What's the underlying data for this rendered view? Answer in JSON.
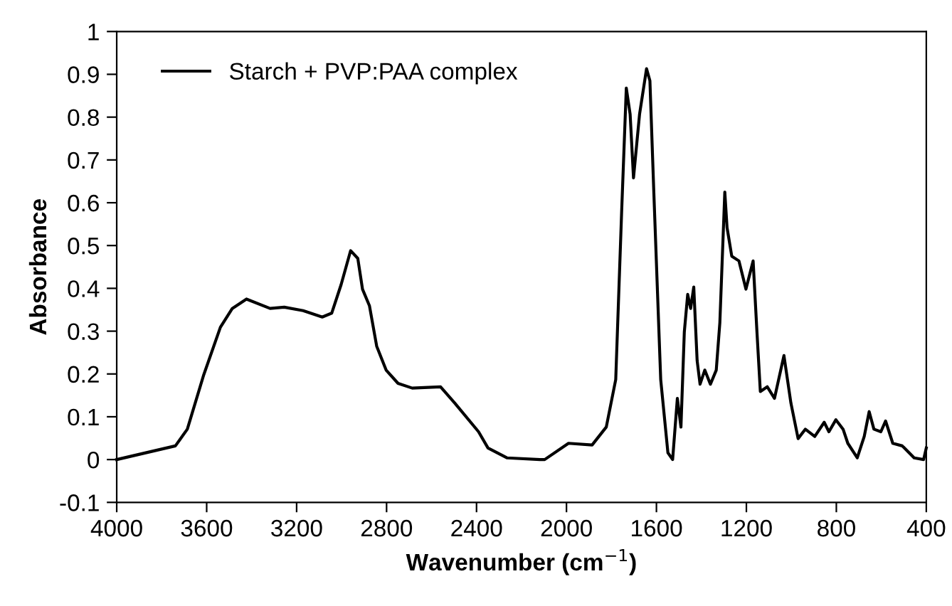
{
  "chart_data": {
    "type": "line",
    "xlabel": "Wavenumber (cm$^{−1}$)",
    "ylabel": "Absorbance",
    "xlim": [
      4000,
      400
    ],
    "xticks": [
      4000,
      3600,
      3200,
      2800,
      2400,
      2000,
      1600,
      1200,
      800,
      400
    ],
    "ylim": [
      -0.1,
      1
    ],
    "yticks": [
      -0.1,
      0,
      0.1,
      0.2,
      0.3,
      0.4,
      0.5,
      0.6,
      0.7,
      0.8,
      0.9,
      1
    ],
    "grid": false,
    "legend": "top left",
    "marker": "none",
    "line_style": "solid",
    "series": [
      {
        "name": "Starch + PVP:PAA complex",
        "color": "#000000",
        "x": [
          4000,
          3739,
          3686,
          3613,
          3539,
          3486,
          3423,
          3318,
          3255,
          3171,
          3086,
          3044,
          3002,
          2960,
          2928,
          2907,
          2876,
          2844,
          2802,
          2749,
          2686,
          2560,
          2497,
          2391,
          2349,
          2265,
          2118,
          2097,
          1991,
          1886,
          1823,
          1781,
          1755,
          1734,
          1717,
          1702,
          1675,
          1644,
          1629,
          1612,
          1581,
          1549,
          1528,
          1507,
          1491,
          1476,
          1461,
          1448,
          1434,
          1419,
          1406,
          1385,
          1360,
          1334,
          1318,
          1296,
          1286,
          1265,
          1233,
          1202,
          1170,
          1153,
          1138,
          1107,
          1075,
          1033,
          1002,
          970,
          938,
          896,
          854,
          833,
          802,
          770,
          749,
          707,
          676,
          654,
          633,
          602,
          581,
          549,
          507,
          454,
          412,
          400
        ],
        "values": [
          0,
          0.032,
          0.071,
          0.198,
          0.309,
          0.353,
          0.375,
          0.353,
          0.356,
          0.348,
          0.333,
          0.342,
          0.409,
          0.488,
          0.47,
          0.398,
          0.359,
          0.265,
          0.209,
          0.178,
          0.167,
          0.17,
          0.132,
          0.065,
          0.027,
          0.004,
          0,
          0,
          0.038,
          0.034,
          0.076,
          0.187,
          0.575,
          0.868,
          0.807,
          0.658,
          0.807,
          0.913,
          0.885,
          0.63,
          0.187,
          0.016,
          0,
          0.143,
          0.076,
          0.298,
          0.386,
          0.353,
          0.403,
          0.231,
          0.176,
          0.209,
          0.176,
          0.209,
          0.32,
          0.625,
          0.542,
          0.475,
          0.464,
          0.398,
          0.464,
          0.298,
          0.159,
          0.17,
          0.143,
          0.243,
          0.132,
          0.049,
          0.071,
          0.054,
          0.087,
          0.065,
          0.093,
          0.071,
          0.038,
          0.004,
          0.054,
          0.112,
          0.071,
          0.065,
          0.09,
          0.038,
          0.032,
          0.004,
          0,
          0.027
        ]
      }
    ]
  }
}
